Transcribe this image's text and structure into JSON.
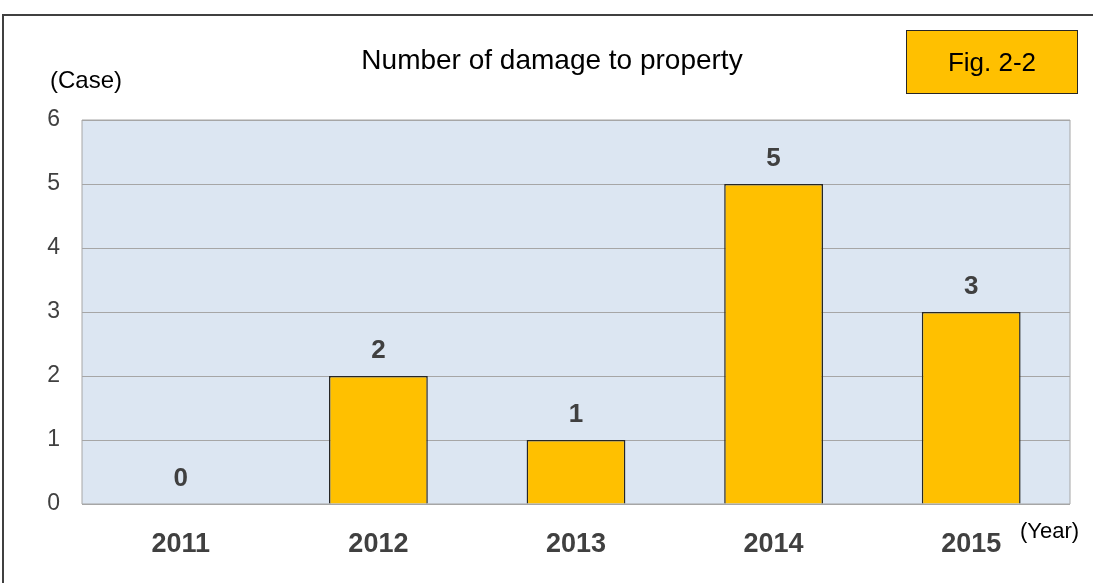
{
  "chart_data": {
    "type": "bar",
    "title": "Number of damage to property",
    "categories": [
      "2011",
      "2012",
      "2013",
      "2014",
      "2015"
    ],
    "values": [
      0,
      2,
      1,
      5,
      3
    ],
    "color": "#ffc000",
    "ylabel": "(Case)",
    "xlabel": "(Year)",
    "ylim": [
      0,
      6
    ],
    "yticks": [
      0,
      1,
      2,
      3,
      4,
      5,
      6
    ],
    "grid": "y",
    "data_labels": true,
    "legend": false,
    "annotations": [
      "Fig. 2-2"
    ]
  }
}
